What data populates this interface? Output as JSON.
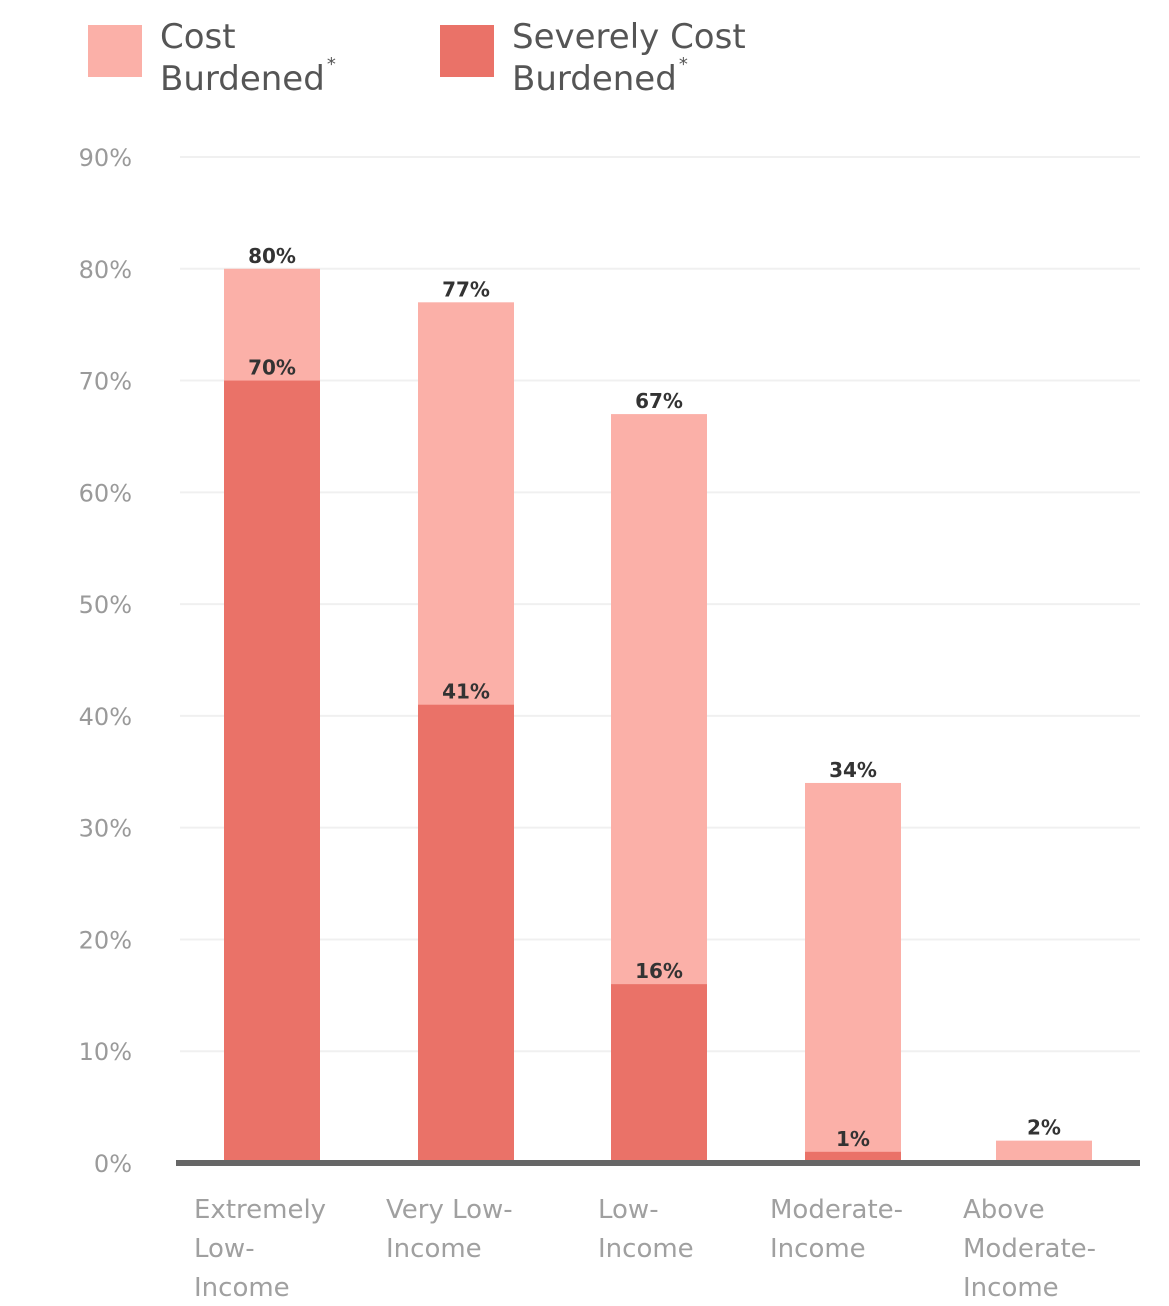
{
  "legend": {
    "items": [
      {
        "label_line1": "Cost",
        "label_line2": "Burdened",
        "marker": "*"
      },
      {
        "label_line1": "Severely Cost",
        "label_line2": "Burdened",
        "marker": "*"
      }
    ]
  },
  "chart_data": {
    "type": "bar",
    "stacked": "overlay",
    "categories": [
      [
        "Extremely",
        "Low-",
        "Income"
      ],
      [
        "Very Low-",
        "Income"
      ],
      [
        "Low-",
        "Income"
      ],
      [
        "Moderate-",
        "Income"
      ],
      [
        "Above",
        "Moderate-",
        "Income"
      ]
    ],
    "series": [
      {
        "name": "Cost Burdened*",
        "values": [
          80,
          77,
          67,
          34,
          2
        ],
        "labels": [
          "80%",
          "77%",
          "67%",
          "34%",
          "2%"
        ]
      },
      {
        "name": "Severely Cost Burdened*",
        "values": [
          70,
          41,
          16,
          1,
          null
        ],
        "labels": [
          "70%",
          "41%",
          "16%",
          "1%",
          ""
        ]
      }
    ],
    "y_ticks": [
      "0%",
      "10%",
      "20%",
      "30%",
      "40%",
      "50%",
      "60%",
      "70%",
      "80%",
      "90%"
    ],
    "ylim": [
      0,
      90
    ],
    "grid": true,
    "legend_position": "top-left",
    "colors": {
      "cost_burdened": "#fbb0a8",
      "severely_cost_burdened": "#ea7268",
      "axis": "#666666",
      "grid": "#f0f0f0"
    }
  }
}
